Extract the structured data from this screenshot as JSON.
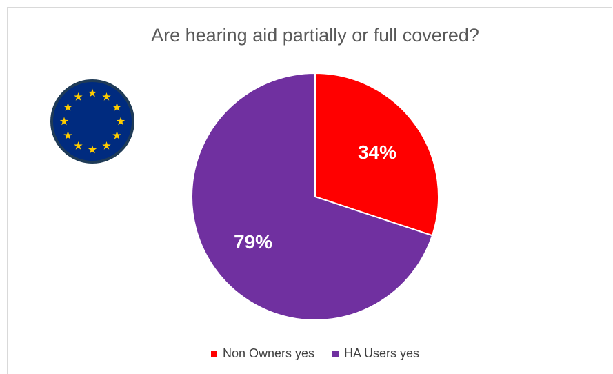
{
  "chart_data": {
    "type": "pie",
    "title": "Are hearing aid partially or full covered?",
    "series": [
      {
        "name": "Non Owners yes",
        "value": 34,
        "label": "34%",
        "color": "#ff0000"
      },
      {
        "name": "HA Users yes",
        "value": 79,
        "label": "79%",
        "color": "#7030a0"
      }
    ],
    "legend_position": "bottom"
  },
  "flag": {
    "icon": "eu-flag-icon",
    "background": "#002b7f",
    "star_color": "#ffcc00"
  }
}
